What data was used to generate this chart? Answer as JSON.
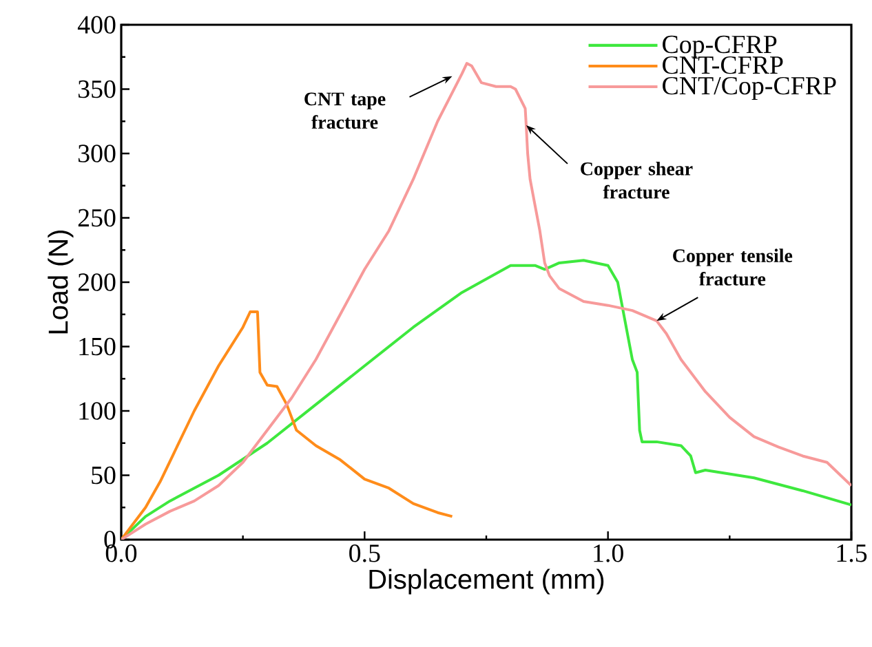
{
  "chart_data": {
    "type": "line",
    "xlabel": "Displacement (mm)",
    "ylabel": "Load (N)",
    "xlim": [
      0,
      1.5
    ],
    "ylim": [
      0,
      400
    ],
    "xticks": [
      {
        "value": 0,
        "label": "0.0"
      },
      0.5,
      {
        "value": 1,
        "label": "1.0"
      },
      1.5
    ],
    "yticks": [
      0,
      50,
      100,
      150,
      200,
      250,
      300,
      350,
      400
    ],
    "legend": "top right",
    "grid": false,
    "marker": "none",
    "line_style": "solid",
    "series": [
      {
        "name": "Cop-CFRP",
        "color": "#3ee83e",
        "x": [
          0,
          0.05,
          0.1,
          0.2,
          0.3,
          0.4,
          0.5,
          0.6,
          0.7,
          0.8,
          0.85,
          0.87,
          0.9,
          0.95,
          1.0,
          1.02,
          1.04,
          1.05,
          1.06,
          1.065,
          1.07,
          1.1,
          1.15,
          1.17,
          1.18,
          1.2,
          1.3,
          1.4,
          1.5
        ],
        "values": [
          0,
          18,
          30,
          50,
          75,
          105,
          135,
          165,
          192,
          213,
          213,
          210,
          215,
          217,
          213,
          200,
          160,
          140,
          130,
          85,
          76,
          76,
          73,
          65,
          52,
          54,
          48,
          38,
          27
        ]
      },
      {
        "name": "CNT-CFRP",
        "color": "#ff8c1a",
        "x": [
          0,
          0.05,
          0.08,
          0.15,
          0.2,
          0.25,
          0.265,
          0.28,
          0.285,
          0.3,
          0.32,
          0.34,
          0.36,
          0.4,
          0.45,
          0.5,
          0.55,
          0.6,
          0.65,
          0.68
        ],
        "values": [
          0,
          25,
          45,
          100,
          135,
          165,
          177,
          177,
          130,
          120,
          119,
          105,
          85,
          73,
          62,
          47,
          40,
          28,
          21,
          18
        ]
      },
      {
        "name": "CNT/Cop-CFRP",
        "color": "#f79a9a",
        "x": [
          0,
          0.05,
          0.1,
          0.15,
          0.2,
          0.25,
          0.3,
          0.35,
          0.4,
          0.45,
          0.5,
          0.55,
          0.6,
          0.65,
          0.7,
          0.71,
          0.72,
          0.74,
          0.77,
          0.8,
          0.81,
          0.83,
          0.832,
          0.835,
          0.84,
          0.85,
          0.86,
          0.87,
          0.88,
          0.9,
          0.95,
          1.0,
          1.05,
          1.1,
          1.12,
          1.15,
          1.2,
          1.25,
          1.3,
          1.35,
          1.4,
          1.45,
          1.5
        ],
        "values": [
          0,
          12,
          22,
          30,
          42,
          60,
          85,
          110,
          140,
          175,
          210,
          240,
          280,
          325,
          362,
          370,
          368,
          355,
          352,
          352,
          350,
          335,
          322,
          300,
          280,
          260,
          240,
          215,
          205,
          195,
          185,
          182,
          178,
          170,
          160,
          140,
          115,
          95,
          80,
          72,
          65,
          60,
          42
        ]
      }
    ],
    "annotations": [
      {
        "text": "CNT tape fracture",
        "x": 0.68,
        "y": 360
      },
      {
        "text": "Copper shear fracture",
        "x": 0.832,
        "y": 322
      },
      {
        "text": "Copper tensile fracture",
        "x": 1.1,
        "y": 170
      }
    ]
  }
}
